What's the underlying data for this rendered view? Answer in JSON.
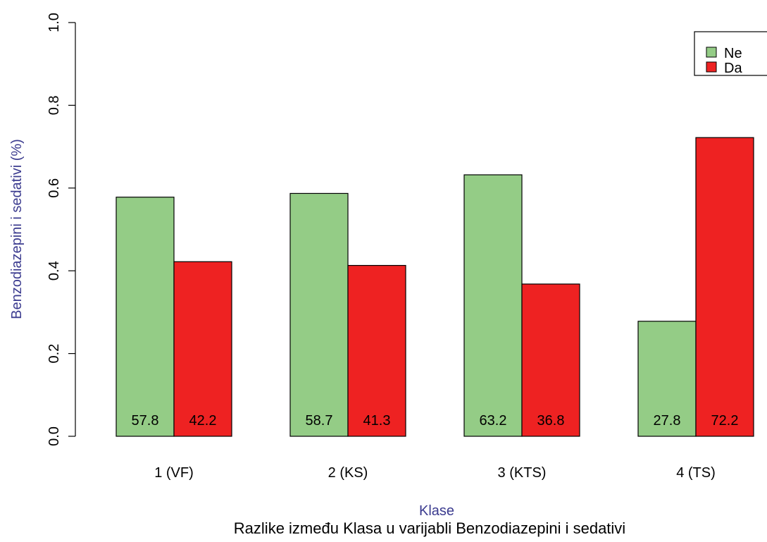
{
  "chart_data": {
    "type": "bar",
    "categories": [
      "1 (VF)",
      "2 (KS)",
      "3 (KTS)",
      "4 (TS)"
    ],
    "series": [
      {
        "name": "Ne",
        "color": "#94cc86",
        "values": [
          0.578,
          0.587,
          0.632,
          0.278
        ],
        "labels": [
          "57.8",
          "58.7",
          "63.2",
          "27.8"
        ]
      },
      {
        "name": "Da",
        "color": "#ee2222",
        "values": [
          0.422,
          0.413,
          0.368,
          0.722
        ],
        "labels": [
          "42.2",
          "41.3",
          "36.8",
          "72.2"
        ]
      }
    ],
    "title": "Razlike između Klasa u varijabli Benzodiazepini i sedativi",
    "xlabel": "Klase",
    "ylabel": "Benzodiazepini i sedativi (%)",
    "ylim": [
      0,
      1.0
    ],
    "yticks": [
      "0.0",
      "0.2",
      "0.4",
      "0.6",
      "0.8",
      "1.0"
    ],
    "legend_position": "top-right",
    "grid": false
  }
}
